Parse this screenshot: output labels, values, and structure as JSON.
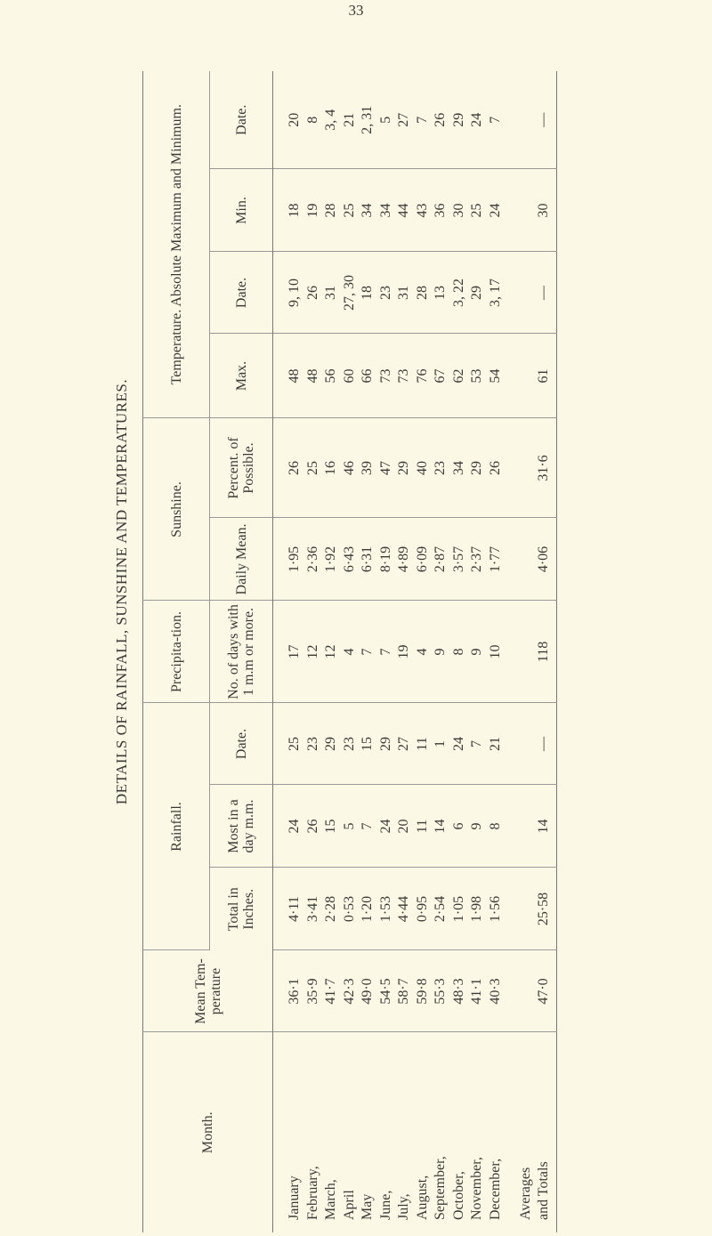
{
  "page_number": "33",
  "title": "DETAILS OF RAINFALL, SUNSHINE AND TEMPERATURES.",
  "headers": {
    "month": "Month.",
    "mean_temp": "Mean Tem-perature",
    "rainfall": "Rainfall.",
    "total_inches": "Total in Inches.",
    "most_in_day": "Most in a day m.m.",
    "rain_date": "Date.",
    "precipitation": "Precipita-tion.",
    "days_1mm": "No. of days with 1 m.m or more.",
    "sunshine": "Sunshine.",
    "daily_mean": "Daily Mean.",
    "percent_possible": "Percent. of Possible.",
    "temperature": "Temperature. Absolute Maximum and Minimum.",
    "max": "Max.",
    "max_date": "Date.",
    "min": "Min.",
    "min_date": "Date."
  },
  "rows": [
    {
      "month": "January",
      "mean_temp": "36·1",
      "total": "4·11",
      "most": "24",
      "rain_date": "25",
      "days": "17",
      "daily_mean": "1·95",
      "percent": "26",
      "max": "48",
      "max_date": "9, 10",
      "min": "18",
      "min_date": "20"
    },
    {
      "month": "February,",
      "mean_temp": "35·9",
      "total": "3·41",
      "most": "26",
      "rain_date": "23",
      "days": "12",
      "daily_mean": "2·36",
      "percent": "25",
      "max": "48",
      "max_date": "26",
      "min": "19",
      "min_date": "8"
    },
    {
      "month": "March,",
      "mean_temp": "41·7",
      "total": "2·28",
      "most": "15",
      "rain_date": "29",
      "days": "12",
      "daily_mean": "1·92",
      "percent": "16",
      "max": "56",
      "max_date": "31",
      "min": "28",
      "min_date": "3, 4"
    },
    {
      "month": "April",
      "mean_temp": "42·3",
      "total": "0·53",
      "most": "5",
      "rain_date": "23",
      "days": "4",
      "daily_mean": "6·43",
      "percent": "46",
      "max": "60",
      "max_date": "27, 30",
      "min": "25",
      "min_date": "21"
    },
    {
      "month": "May",
      "mean_temp": "49·0",
      "total": "1·20",
      "most": "7",
      "rain_date": "15",
      "days": "7",
      "daily_mean": "6·31",
      "percent": "39",
      "max": "66",
      "max_date": "18",
      "min": "34",
      "min_date": "2, 31"
    },
    {
      "month": "June,",
      "mean_temp": "54·5",
      "total": "1·53",
      "most": "24",
      "rain_date": "29",
      "days": "7",
      "daily_mean": "8·19",
      "percent": "47",
      "max": "73",
      "max_date": "23",
      "min": "34",
      "min_date": "5"
    },
    {
      "month": "July,",
      "mean_temp": "58·7",
      "total": "4·44",
      "most": "20",
      "rain_date": "27",
      "days": "19",
      "daily_mean": "4·89",
      "percent": "29",
      "max": "73",
      "max_date": "31",
      "min": "44",
      "min_date": "27"
    },
    {
      "month": "August,",
      "mean_temp": "59·8",
      "total": "0·95",
      "most": "11",
      "rain_date": "11",
      "days": "4",
      "daily_mean": "6·09",
      "percent": "40",
      "max": "76",
      "max_date": "28",
      "min": "43",
      "min_date": "7"
    },
    {
      "month": "September,",
      "mean_temp": "55·3",
      "total": "2·54",
      "most": "14",
      "rain_date": "1",
      "days": "9",
      "daily_mean": "2·87",
      "percent": "23",
      "max": "67",
      "max_date": "13",
      "min": "36",
      "min_date": "26"
    },
    {
      "month": "October,",
      "mean_temp": "48·3",
      "total": "1·05",
      "most": "6",
      "rain_date": "24",
      "days": "8",
      "daily_mean": "3·57",
      "percent": "34",
      "max": "62",
      "max_date": "3, 22",
      "min": "30",
      "min_date": "29"
    },
    {
      "month": "November,",
      "mean_temp": "41·1",
      "total": "1·98",
      "most": "9",
      "rain_date": "7",
      "days": "9",
      "daily_mean": "2·37",
      "percent": "29",
      "max": "53",
      "max_date": "29",
      "min": "25",
      "min_date": "24"
    },
    {
      "month": "December,",
      "mean_temp": "40·3",
      "total": "1·56",
      "most": "8",
      "rain_date": "21",
      "days": "10",
      "daily_mean": "1·77",
      "percent": "26",
      "max": "54",
      "max_date": "3, 17",
      "min": "24",
      "min_date": "7"
    }
  ],
  "totals": {
    "label_1": "Averages",
    "label_2": "and Totals",
    "mean_temp": "47·0",
    "total": "25·58",
    "most": "14",
    "rain_date": "—",
    "days": "118",
    "daily_mean": "4·06",
    "percent": "31·6",
    "max": "61",
    "max_date": "—",
    "min": "30",
    "min_date": "—"
  }
}
